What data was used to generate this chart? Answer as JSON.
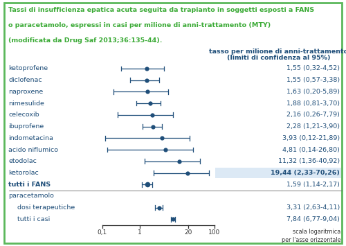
{
  "title_lines": [
    "Tassi di insufficienza epatica acuta seguita da trapianto in soggetti esposti a FANS",
    "o paracetamolo, espressi in casi per milione di anni-trattamento (MTY)",
    "(modificata da Drug Saf 2013;36:135-44)."
  ],
  "title_color": "#3aaa35",
  "header_line1": "tasso per milione di anni-trattamento",
  "header_line2": "(limiti di confidenza al 95%)",
  "rows": [
    {
      "label": "ketoprofene",
      "point": 1.55,
      "lo": 0.32,
      "hi": 4.52,
      "text": "1,55 (0,32-4,52)",
      "bold": false,
      "indent": 0,
      "highlight": false,
      "data_row": true
    },
    {
      "label": "diclofenac",
      "point": 1.55,
      "lo": 0.57,
      "hi": 3.38,
      "text": "1,55 (0,57-3,38)",
      "bold": false,
      "indent": 0,
      "highlight": false,
      "data_row": true
    },
    {
      "label": "naproxene",
      "point": 1.63,
      "lo": 0.2,
      "hi": 5.89,
      "text": "1,63 (0,20-5,89)",
      "bold": false,
      "indent": 0,
      "highlight": false,
      "data_row": true
    },
    {
      "label": "nimesulide",
      "point": 1.88,
      "lo": 0.81,
      "hi": 3.7,
      "text": "1,88 (0,81-3,70)",
      "bold": false,
      "indent": 0,
      "highlight": false,
      "data_row": true
    },
    {
      "label": "celecoxib",
      "point": 2.16,
      "lo": 0.26,
      "hi": 7.79,
      "text": "2,16 (0,26-7,79)",
      "bold": false,
      "indent": 0,
      "highlight": false,
      "data_row": true
    },
    {
      "label": "ibuprofene",
      "point": 2.28,
      "lo": 1.21,
      "hi": 3.9,
      "text": "2,28 (1,21-3,90)",
      "bold": false,
      "indent": 0,
      "highlight": false,
      "data_row": true
    },
    {
      "label": "indometacina",
      "point": 3.93,
      "lo": 0.12,
      "hi": 21.89,
      "text": "3,93 (0,12-21,89)",
      "bold": false,
      "indent": 0,
      "highlight": false,
      "data_row": true
    },
    {
      "label": "acido niflumico",
      "point": 4.81,
      "lo": 0.14,
      "hi": 26.8,
      "text": "4,81 (0,14-26,80)",
      "bold": false,
      "indent": 0,
      "highlight": false,
      "data_row": true
    },
    {
      "label": "etodolac",
      "point": 11.32,
      "lo": 1.36,
      "hi": 40.92,
      "text": "11,32 (1,36-40,92)",
      "bold": false,
      "indent": 0,
      "highlight": false,
      "data_row": true
    },
    {
      "label": "ketorolac",
      "point": 19.44,
      "lo": 2.33,
      "hi": 70.26,
      "text": "19,44 (2,33-70,26)",
      "bold": false,
      "indent": 0,
      "highlight": true,
      "data_row": true
    },
    {
      "label": "tutti i FANS",
      "point": 1.59,
      "lo": 1.14,
      "hi": 2.17,
      "text": "1,59 (1,14-2,17)",
      "bold": true,
      "indent": 0,
      "highlight": false,
      "data_row": true
    },
    {
      "label": "paracetamolo",
      "point": null,
      "lo": null,
      "hi": null,
      "text": "",
      "bold": false,
      "indent": 0,
      "highlight": false,
      "data_row": false
    },
    {
      "label": "dosi terapeutiche",
      "point": 3.31,
      "lo": 2.63,
      "hi": 4.11,
      "text": "3,31 (2,63-4,11)",
      "bold": false,
      "indent": 1,
      "highlight": false,
      "data_row": true
    },
    {
      "label": "tutti i casi",
      "point": 7.84,
      "lo": 6.77,
      "hi": 9.04,
      "text": "7,84 (6,77-9,04)",
      "bold": false,
      "indent": 1,
      "highlight": false,
      "data_row": true
    }
  ],
  "log_min": -1,
  "log_max": 2,
  "xticks": [
    0.1,
    1,
    20,
    100
  ],
  "xtick_labels": [
    "0,1",
    "1",
    "20",
    "100"
  ],
  "xlabel_note": "scala logaritmica\nper l'asse orizzontale",
  "plot_color": "#1f4e79",
  "highlight_color": "#dce9f5",
  "border_color": "#5cb85c",
  "bg_color": "#ffffff",
  "label_color": "#1f4e79",
  "text_color": "#1f4e79",
  "sep_row": 11
}
